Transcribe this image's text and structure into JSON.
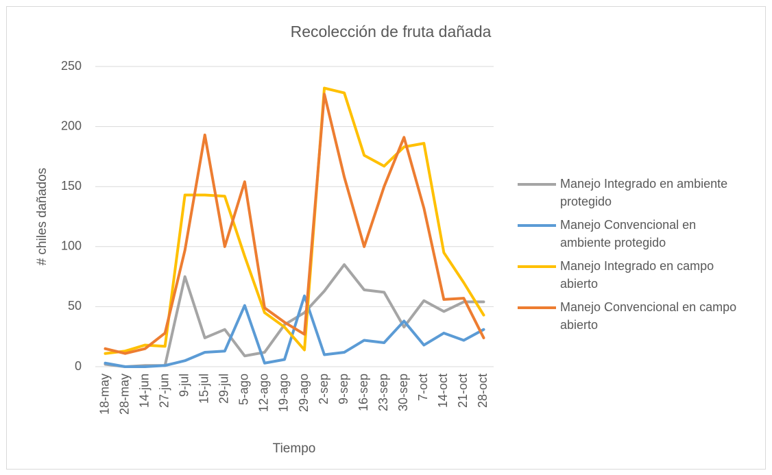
{
  "chart_data": {
    "type": "line",
    "title": "Recolección de fruta dañada",
    "x_label": "Tiempo",
    "y_label": "# chiles dañados",
    "categories": [
      "18-may",
      "28-may",
      "14-jun",
      "27-jun",
      "9-jul",
      "15-jul",
      "29-jul",
      "5-ago",
      "12-ago",
      "19-ago",
      "29-ago",
      "2-sep",
      "9-sep",
      "16-sep",
      "23-sep",
      "30-sep",
      "7-oct",
      "14-oct",
      "21-oct",
      "28-oct"
    ],
    "series": [
      {
        "name": "Manejo Integrado en ambiente protegido",
        "color": "#a5a5a5",
        "values": [
          2,
          0,
          1,
          1,
          75,
          24,
          31,
          9,
          12,
          35,
          45,
          63,
          85,
          64,
          62,
          33,
          55,
          46,
          54,
          54
        ]
      },
      {
        "name": "Manejo Convencional en ambiente protegido",
        "color": "#5b9bd5",
        "values": [
          3,
          0,
          0,
          1,
          5,
          12,
          13,
          51,
          3,
          6,
          59,
          10,
          12,
          22,
          20,
          38,
          18,
          28,
          22,
          31
        ]
      },
      {
        "name": "Manejo Integrado en campo abierto",
        "color": "#ffc000",
        "values": [
          11,
          13,
          18,
          17,
          143,
          143,
          142,
          92,
          45,
          33,
          14,
          232,
          228,
          176,
          167,
          183,
          186,
          95,
          70,
          43
        ]
      },
      {
        "name": "Manejo Convencional en campo abierto",
        "color": "#ed7d31",
        "values": [
          15,
          11,
          15,
          28,
          97,
          193,
          100,
          154,
          49,
          37,
          27,
          227,
          158,
          100,
          150,
          191,
          132,
          56,
          57,
          24
        ]
      }
    ],
    "ylim": [
      0,
      250
    ],
    "yticks": [
      0,
      50,
      100,
      150,
      200,
      250
    ],
    "grid": true,
    "legend": "right"
  }
}
